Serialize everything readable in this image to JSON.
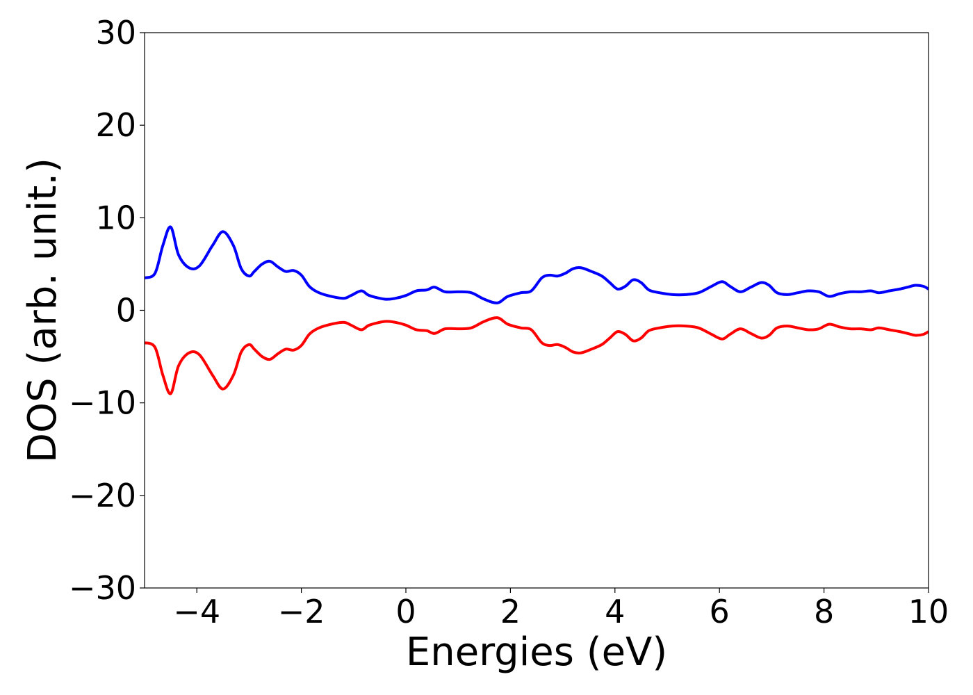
{
  "chart_data": {
    "type": "line",
    "title": "",
    "xlabel": "Energies (eV)",
    "ylabel": "DOS (arb. unit.)",
    "xlim": [
      -5,
      10
    ],
    "ylim": [
      -30,
      30
    ],
    "xticks": [
      -4,
      -2,
      0,
      2,
      4,
      6,
      8,
      10
    ],
    "yticks": [
      -30,
      -20,
      -10,
      0,
      10,
      20,
      30
    ],
    "xtick_labels": [
      "−4",
      "−2",
      "0",
      "2",
      "4",
      "6",
      "8",
      "10"
    ],
    "ytick_labels": [
      "−30",
      "−20",
      "−10",
      "0",
      "10",
      "20",
      "30"
    ],
    "grid": false,
    "legend": "none",
    "x": [
      -5.0,
      -4.8,
      -4.65,
      -4.5,
      -4.35,
      -4.15,
      -3.95,
      -3.7,
      -3.5,
      -3.3,
      -3.15,
      -3.0,
      -2.9,
      -2.75,
      -2.6,
      -2.45,
      -2.3,
      -2.15,
      -2.0,
      -1.85,
      -1.7,
      -1.5,
      -1.2,
      -1.05,
      -0.85,
      -0.7,
      -0.4,
      -0.2,
      0.0,
      0.2,
      0.4,
      0.55,
      0.75,
      1.0,
      1.25,
      1.5,
      1.75,
      1.95,
      2.2,
      2.4,
      2.6,
      2.75,
      2.9,
      3.05,
      3.2,
      3.35,
      3.55,
      3.75,
      3.9,
      4.05,
      4.2,
      4.35,
      4.5,
      4.65,
      4.85,
      5.1,
      5.35,
      5.6,
      5.85,
      6.05,
      6.2,
      6.4,
      6.6,
      6.8,
      6.95,
      7.1,
      7.3,
      7.5,
      7.7,
      7.9,
      8.1,
      8.3,
      8.5,
      8.7,
      8.9,
      9.05,
      9.25,
      9.45,
      9.6,
      9.75,
      9.9,
      10.0
    ],
    "series": [
      {
        "color": "#0000ff",
        "values": [
          3.5,
          4.0,
          7.0,
          9.0,
          6.0,
          4.6,
          4.8,
          7.0,
          8.5,
          7.0,
          4.5,
          3.7,
          4.2,
          5.0,
          5.3,
          4.7,
          4.2,
          4.3,
          3.8,
          2.6,
          2.0,
          1.6,
          1.3,
          1.6,
          2.1,
          1.6,
          1.2,
          1.3,
          1.6,
          2.1,
          2.2,
          2.5,
          2.0,
          2.0,
          1.9,
          1.2,
          0.8,
          1.5,
          1.9,
          2.1,
          3.5,
          3.8,
          3.7,
          4.0,
          4.5,
          4.6,
          4.2,
          3.7,
          3.0,
          2.3,
          2.6,
          3.3,
          3.0,
          2.2,
          1.9,
          1.7,
          1.7,
          1.9,
          2.6,
          3.1,
          2.6,
          2.0,
          2.5,
          3.0,
          2.7,
          1.9,
          1.7,
          1.9,
          2.1,
          2.0,
          1.5,
          1.8,
          2.0,
          2.0,
          2.1,
          1.9,
          2.1,
          2.3,
          2.5,
          2.7,
          2.6,
          2.3
        ]
      },
      {
        "color": "#ff0000",
        "values": [
          -3.5,
          -4.0,
          -7.0,
          -9.0,
          -6.0,
          -4.6,
          -4.8,
          -7.0,
          -8.5,
          -7.0,
          -4.5,
          -3.7,
          -4.2,
          -5.0,
          -5.3,
          -4.7,
          -4.2,
          -4.3,
          -3.8,
          -2.6,
          -2.0,
          -1.6,
          -1.3,
          -1.6,
          -2.1,
          -1.6,
          -1.2,
          -1.3,
          -1.6,
          -2.1,
          -2.2,
          -2.5,
          -2.0,
          -2.0,
          -1.9,
          -1.2,
          -0.8,
          -1.5,
          -1.9,
          -2.1,
          -3.5,
          -3.8,
          -3.7,
          -4.0,
          -4.5,
          -4.6,
          -4.2,
          -3.7,
          -3.0,
          -2.3,
          -2.6,
          -3.3,
          -3.0,
          -2.2,
          -1.9,
          -1.7,
          -1.7,
          -1.9,
          -2.6,
          -3.1,
          -2.6,
          -2.0,
          -2.5,
          -3.0,
          -2.7,
          -1.9,
          -1.7,
          -1.9,
          -2.1,
          -2.0,
          -1.5,
          -1.8,
          -2.0,
          -2.0,
          -2.1,
          -1.9,
          -2.1,
          -2.3,
          -2.5,
          -2.7,
          -2.6,
          -2.3
        ]
      }
    ]
  }
}
